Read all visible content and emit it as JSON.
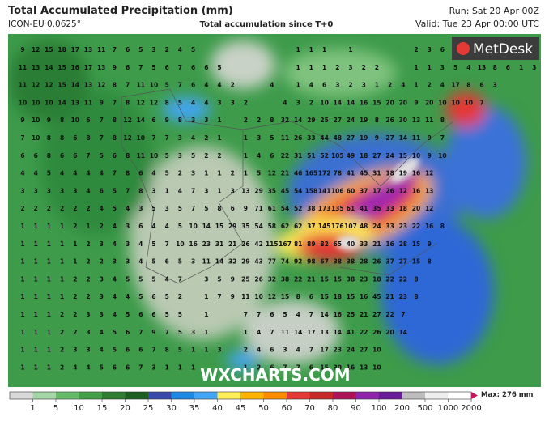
{
  "header": {
    "title": "Total Accumulated Precipitation (mm)",
    "model": "ICON-EU 0.0625°",
    "subtitle": "Total accumulation since T+0",
    "run": "Run: Sat 20 Apr 00Z",
    "valid": "Valid: Tue 23 Apr 00:00 UTC"
  },
  "logo": "MetDesk",
  "watermark": "WXCHARTS.COM",
  "max_label": "Max: 276 mm",
  "legend": {
    "labels": [
      1,
      5,
      10,
      15,
      20,
      25,
      30,
      35,
      40,
      45,
      50,
      60,
      70,
      80,
      90,
      100,
      200,
      500,
      1000,
      2000
    ],
    "colors": [
      "#d9d9d9",
      "#a5d6a7",
      "#66bb6a",
      "#43a047",
      "#2e7d32",
      "#1b5e20",
      "#3949ab",
      "#1e88e5",
      "#42a5f5",
      "#ffee58",
      "#ffb300",
      "#fb8c00",
      "#e53935",
      "#c62828",
      "#ad1457",
      "#8e24aa",
      "#6a1b9a",
      "#bdbdbd",
      "#eeeeee",
      "#ffffff"
    ]
  },
  "grid": {
    "rows": [
      [
        9,
        12,
        15,
        18,
        17,
        13,
        11,
        7,
        6,
        5,
        3,
        2,
        4,
        5,
        null,
        null,
        null,
        null,
        null,
        null,
        null,
        1,
        1,
        1,
        null,
        1,
        null,
        null,
        null,
        null,
        2,
        3,
        6,
        4
      ],
      [
        11,
        13,
        14,
        15,
        16,
        17,
        13,
        9,
        6,
        7,
        5,
        6,
        7,
        6,
        6,
        5,
        null,
        null,
        null,
        null,
        null,
        1,
        1,
        1,
        2,
        3,
        2,
        2,
        null,
        null,
        1,
        1,
        3,
        5,
        4,
        13,
        8,
        6,
        1,
        3
      ],
      [
        11,
        12,
        12,
        15,
        14,
        13,
        12,
        8,
        7,
        11,
        10,
        5,
        7,
        6,
        4,
        4,
        2,
        null,
        null,
        4,
        null,
        1,
        4,
        6,
        3,
        2,
        3,
        1,
        2,
        4,
        1,
        2,
        4,
        17,
        8,
        6,
        3
      ],
      [
        10,
        10,
        10,
        14,
        13,
        11,
        9,
        7,
        8,
        12,
        12,
        8,
        5,
        4,
        4,
        3,
        3,
        2,
        null,
        null,
        4,
        3,
        2,
        10,
        14,
        14,
        16,
        15,
        20,
        20,
        9,
        20,
        10,
        10,
        10,
        7
      ],
      [
        9,
        10,
        9,
        8,
        10,
        6,
        7,
        8,
        12,
        14,
        6,
        9,
        8,
        3,
        3,
        1,
        null,
        2,
        2,
        8,
        32,
        14,
        29,
        25,
        27,
        24,
        19,
        8,
        26,
        30,
        13,
        11,
        8
      ],
      [
        7,
        10,
        8,
        8,
        6,
        8,
        7,
        8,
        12,
        10,
        7,
        7,
        3,
        4,
        2,
        1,
        null,
        1,
        3,
        5,
        11,
        26,
        33,
        44,
        48,
        27,
        19,
        9,
        27,
        14,
        11,
        9,
        7
      ],
      [
        6,
        6,
        8,
        6,
        6,
        7,
        5,
        6,
        8,
        11,
        10,
        5,
        3,
        5,
        2,
        2,
        null,
        1,
        4,
        6,
        22,
        31,
        51,
        52,
        105,
        49,
        18,
        27,
        24,
        15,
        10,
        9,
        10
      ],
      [
        4,
        4,
        5,
        4,
        4,
        4,
        4,
        7,
        8,
        6,
        4,
        5,
        2,
        3,
        1,
        1,
        2,
        1,
        5,
        12,
        21,
        46,
        165,
        172,
        78,
        41,
        45,
        31,
        18,
        19,
        16,
        12
      ],
      [
        3,
        3,
        3,
        3,
        3,
        4,
        6,
        5,
        7,
        8,
        3,
        1,
        4,
        7,
        3,
        1,
        3,
        13,
        29,
        35,
        45,
        54,
        158,
        141,
        106,
        60,
        37,
        17,
        26,
        12,
        16,
        13
      ],
      [
        2,
        2,
        2,
        2,
        2,
        2,
        4,
        5,
        4,
        3,
        5,
        3,
        5,
        7,
        5,
        8,
        6,
        9,
        71,
        61,
        54,
        52,
        38,
        173,
        135,
        61,
        41,
        35,
        33,
        18,
        20,
        12
      ],
      [
        1,
        1,
        1,
        1,
        2,
        1,
        2,
        4,
        3,
        6,
        4,
        4,
        5,
        10,
        14,
        15,
        29,
        35,
        54,
        58,
        62,
        62,
        37,
        145,
        176,
        107,
        48,
        24,
        33,
        23,
        22,
        16,
        8
      ],
      [
        1,
        1,
        1,
        1,
        1,
        2,
        3,
        4,
        3,
        4,
        5,
        7,
        10,
        16,
        23,
        31,
        21,
        26,
        42,
        115,
        167,
        81,
        89,
        82,
        65,
        40,
        33,
        21,
        16,
        28,
        15,
        9
      ],
      [
        1,
        1,
        1,
        1,
        1,
        2,
        2,
        3,
        3,
        4,
        5,
        6,
        5,
        3,
        11,
        14,
        32,
        29,
        43,
        77,
        74,
        92,
        98,
        67,
        38,
        38,
        28,
        26,
        37,
        27,
        15,
        8
      ],
      [
        1,
        1,
        1,
        1,
        2,
        2,
        3,
        4,
        5,
        5,
        5,
        4,
        7,
        null,
        3,
        5,
        9,
        25,
        26,
        32,
        38,
        22,
        21,
        15,
        15,
        38,
        23,
        18,
        22,
        22,
        8
      ],
      [
        1,
        1,
        1,
        1,
        2,
        2,
        3,
        4,
        4,
        5,
        6,
        5,
        2,
        null,
        1,
        7,
        9,
        11,
        10,
        12,
        15,
        8,
        6,
        15,
        18,
        15,
        16,
        45,
        21,
        23,
        8
      ],
      [
        1,
        1,
        1,
        2,
        2,
        3,
        3,
        4,
        5,
        6,
        6,
        5,
        5,
        null,
        1,
        null,
        null,
        7,
        7,
        6,
        5,
        4,
        7,
        14,
        16,
        25,
        21,
        27,
        22,
        7
      ],
      [
        1,
        1,
        1,
        2,
        2,
        3,
        4,
        5,
        6,
        7,
        9,
        7,
        5,
        3,
        1,
        null,
        null,
        1,
        4,
        7,
        11,
        14,
        17,
        13,
        14,
        41,
        22,
        26,
        20,
        14
      ],
      [
        1,
        1,
        1,
        2,
        3,
        3,
        4,
        5,
        6,
        6,
        7,
        8,
        5,
        1,
        1,
        3,
        null,
        2,
        4,
        6,
        3,
        4,
        7,
        17,
        23,
        24,
        27,
        10
      ],
      [
        1,
        1,
        1,
        2,
        4,
        4,
        5,
        6,
        6,
        7,
        3,
        1,
        1,
        1,
        null,
        null,
        null,
        1,
        2,
        6,
        7,
        7,
        6,
        15,
        30,
        16,
        13,
        10
      ]
    ]
  }
}
